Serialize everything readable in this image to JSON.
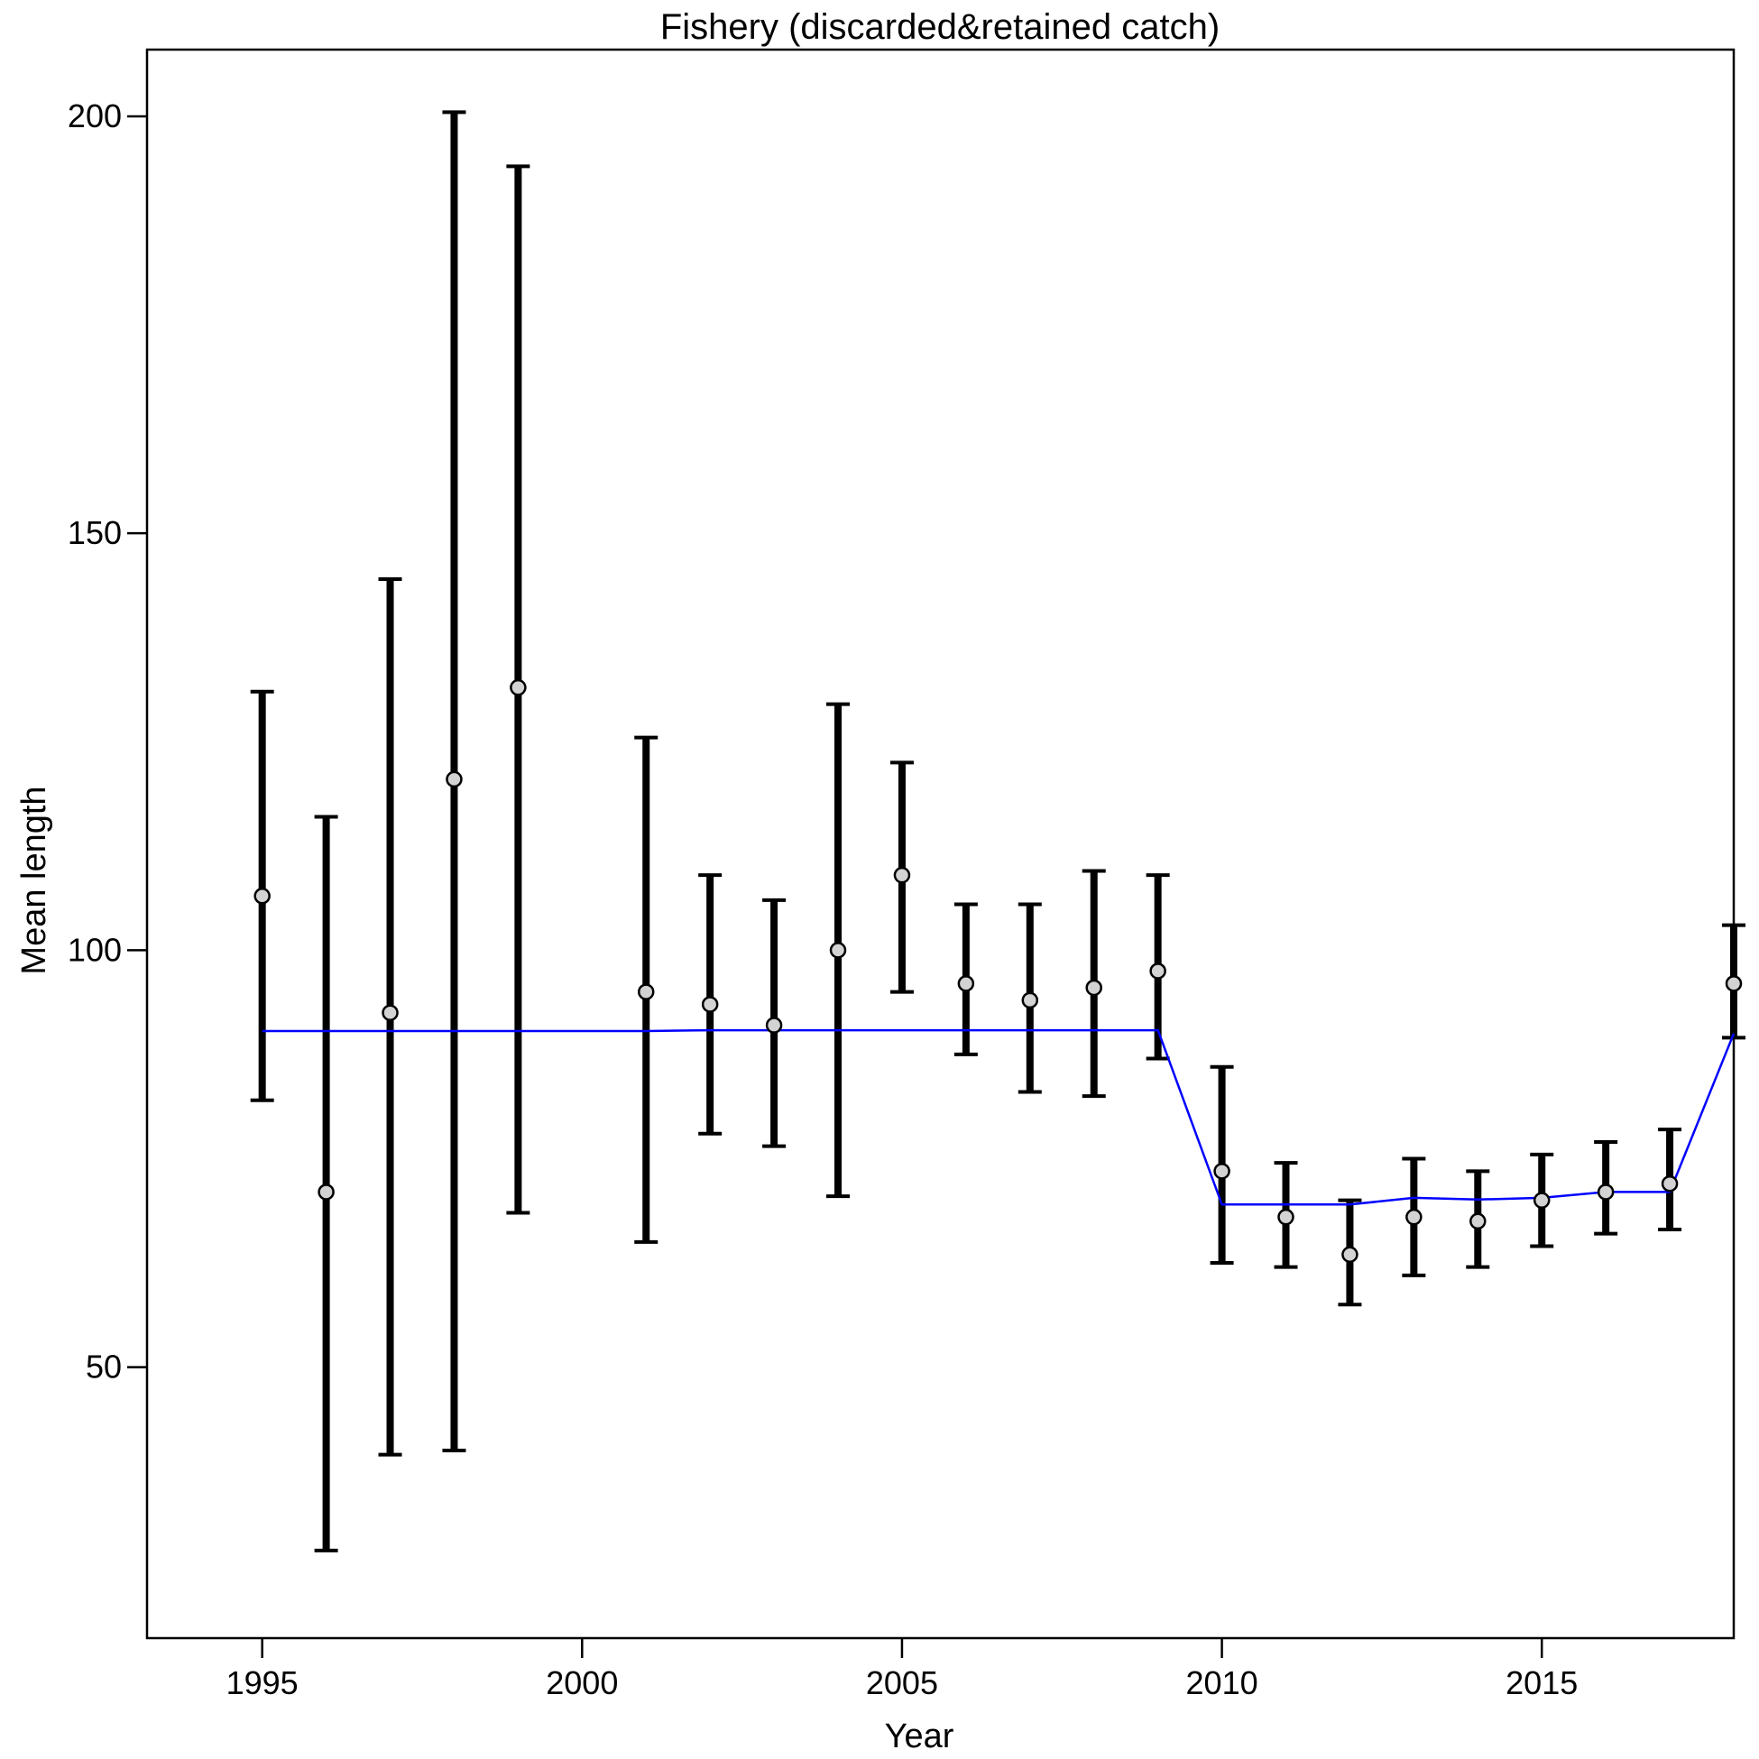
{
  "chart_data": {
    "type": "scatter",
    "title": "Fishery (discarded&retained catch)",
    "xlabel": "Year",
    "ylabel": "Mean length",
    "xlim": [
      1993.2,
      2018.0
    ],
    "ylim": [
      17.5,
      208
    ],
    "xticks": [
      1995,
      2000,
      2005,
      2010,
      2015
    ],
    "yticks": [
      50,
      100,
      150,
      200
    ],
    "grid": false,
    "colors": {
      "observed_marker_fill": "#d3d3d3",
      "observed_marker_stroke": "#000000",
      "error_bar": "#000000",
      "expected_line": "#0000ff"
    },
    "series": [
      {
        "kind": "observed",
        "x": [
          1995,
          1996,
          1997,
          1998,
          1999,
          2001,
          2002,
          2003,
          2004,
          2005,
          2006,
          2007,
          2008,
          2009,
          2010,
          2011,
          2012,
          2013,
          2014,
          2015,
          2016,
          2017,
          2018
        ],
        "y": [
          106.5,
          71.0,
          92.5,
          120.5,
          131.5,
          95.0,
          93.5,
          91.0,
          100.0,
          109.0,
          96.0,
          94.0,
          95.5,
          97.5,
          73.5,
          68.0,
          63.5,
          68.0,
          67.5,
          70.0,
          71.0,
          72.0,
          96.0
        ],
        "lower": [
          82.0,
          28.0,
          39.5,
          40.0,
          68.5,
          65.0,
          78.0,
          76.5,
          70.5,
          95.0,
          87.5,
          83.0,
          82.5,
          87.0,
          62.5,
          62.0,
          57.5,
          61.0,
          62.0,
          64.5,
          66.0,
          66.5,
          89.5
        ],
        "upper": [
          131.0,
          116.0,
          144.5,
          200.5,
          194.0,
          125.5,
          109.0,
          106.0,
          129.5,
          122.5,
          105.5,
          105.5,
          109.5,
          109.0,
          86.0,
          74.5,
          70.0,
          75.0,
          73.5,
          75.5,
          77.0,
          78.5,
          103.0
        ]
      },
      {
        "kind": "expected",
        "x": [
          1995,
          1996,
          1997,
          1998,
          1999,
          2001,
          2002,
          2003,
          2004,
          2005,
          2006,
          2007,
          2008,
          2009,
          2010,
          2011,
          2012,
          2013,
          2014,
          2015,
          2016,
          2017,
          2018
        ],
        "y": [
          90.3,
          90.3,
          90.3,
          90.3,
          90.3,
          90.3,
          90.4,
          90.4,
          90.4,
          90.4,
          90.4,
          90.4,
          90.4,
          90.4,
          69.5,
          69.5,
          69.5,
          70.3,
          70.1,
          70.3,
          71.0,
          71.0,
          90.0
        ]
      }
    ]
  }
}
